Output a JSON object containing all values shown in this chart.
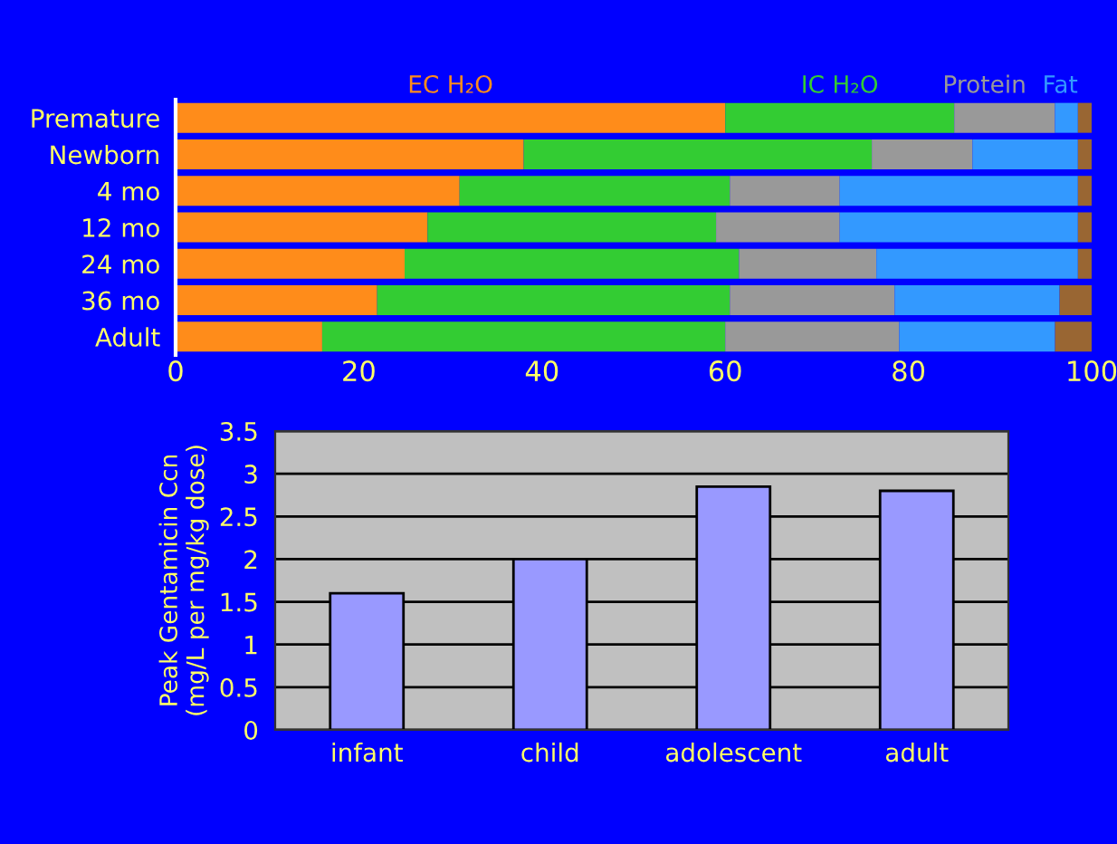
{
  "chart_data": [
    {
      "type": "bar",
      "orientation": "horizontal",
      "stacked": true,
      "categories": [
        "Premature",
        "Newborn",
        "4 mo",
        "12 mo",
        "24 mo",
        "36 mo",
        "Adult"
      ],
      "series": [
        {
          "name": "EC H₂O",
          "color": "#ff8c1a",
          "values": [
            60,
            38,
            31,
            27.5,
            25,
            22,
            16
          ]
        },
        {
          "name": "IC H₂O",
          "color": "#33cc33",
          "values": [
            25,
            38,
            29.5,
            31.5,
            36.5,
            38.5,
            44
          ]
        },
        {
          "name": "Protein",
          "color": "#999999",
          "values": [
            11,
            11,
            12,
            13.5,
            15,
            18,
            19
          ]
        },
        {
          "name": "Fat",
          "color": "#3399ff",
          "values": [
            2.5,
            11.5,
            26,
            26,
            22,
            18,
            17
          ]
        },
        {
          "color": "#996633",
          "values": [
            1.5,
            1.5,
            1.5,
            1.5,
            1.5,
            3.5,
            4
          ]
        }
      ],
      "xlim": [
        0,
        100
      ],
      "xticks": [
        0,
        20,
        40,
        60,
        80,
        100
      ],
      "grid": false,
      "legend": false
    },
    {
      "type": "bar",
      "categories": [
        "infant",
        "child",
        "adolescent",
        "adult"
      ],
      "values": [
        1.6,
        2.0,
        2.85,
        2.8
      ],
      "color": "#9999ff",
      "ylabel": "Peak Gentamicin Ccn\n(mg/L per mg/kg dose)",
      "ylim": [
        0,
        3.5
      ],
      "yticks": [
        0,
        0.5,
        1,
        1.5,
        2,
        2.5,
        3,
        3.5
      ],
      "grid": "y",
      "legend": false
    }
  ]
}
